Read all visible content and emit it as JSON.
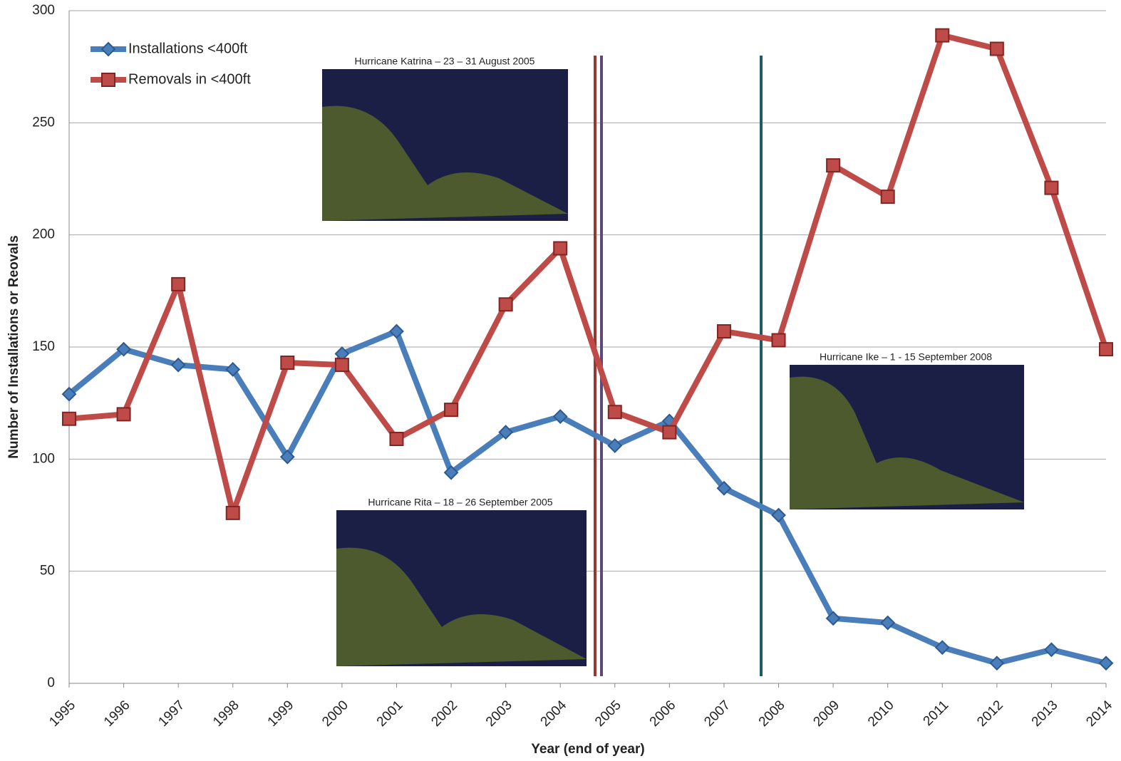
{
  "chart_data": {
    "type": "line",
    "x_label": "Year (end of year)",
    "y_label": "Number of Installations or Reovals",
    "categories": [
      "1995",
      "1996",
      "1997",
      "1998",
      "1999",
      "2000",
      "2001",
      "2002",
      "2003",
      "2004",
      "2005",
      "2006",
      "2007",
      "2008",
      "2009",
      "2010",
      "2011",
      "2012",
      "2013",
      "2014"
    ],
    "series": [
      {
        "name": "Installations <400ft",
        "color": "#4a7ebb",
        "marker": "diamond",
        "values": [
          129,
          149,
          142,
          140,
          101,
          147,
          157,
          94,
          112,
          119,
          106,
          117,
          87,
          75,
          29,
          27,
          16,
          9,
          15,
          9
        ]
      },
      {
        "name": "Removals in <400ft",
        "color": "#be4b48",
        "marker": "square",
        "values": [
          118,
          120,
          178,
          76,
          143,
          142,
          109,
          122,
          169,
          194,
          121,
          112,
          157,
          153,
          231,
          217,
          289,
          283,
          221,
          149
        ]
      }
    ],
    "ylim": [
      0,
      300
    ],
    "yticks": [
      0,
      50,
      100,
      150,
      200,
      250,
      300
    ],
    "grid": true,
    "legend": "upper left",
    "annotations": [
      "Hurricane Katrina – 23 – 31 August 2005",
      "Hurricane Rita – 18 – 26 September 2005",
      "Hurricane Ike – 1 - 15 September 2008"
    ]
  }
}
